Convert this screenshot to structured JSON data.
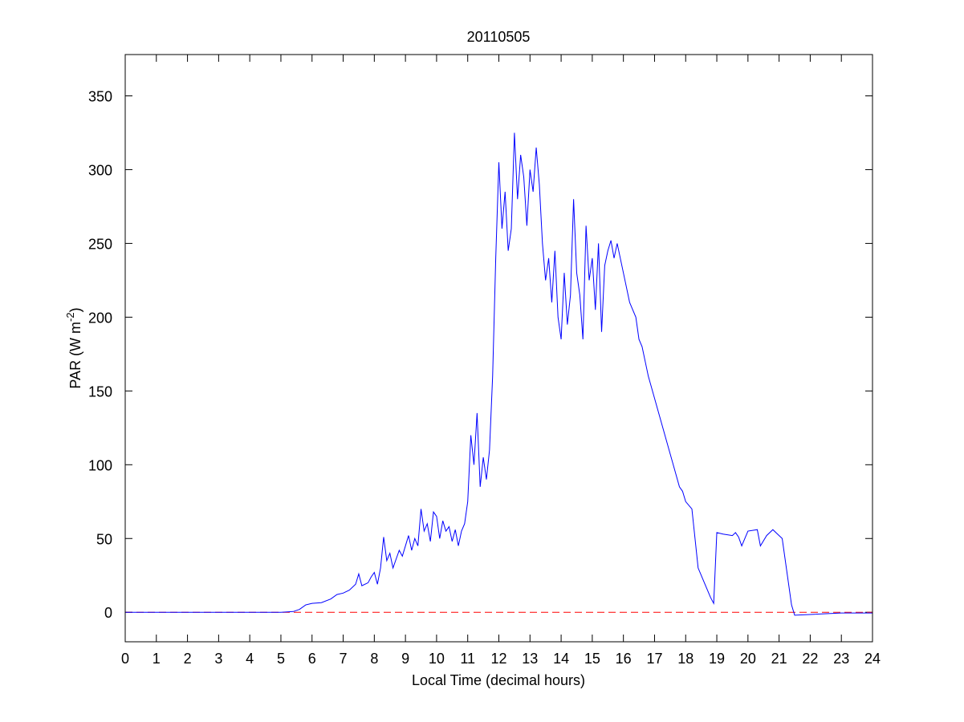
{
  "chart_data": {
    "type": "line",
    "title": "20110505",
    "xlabel": "Local Time (decimal hours)",
    "ylabel": {
      "text": "PAR (W m",
      "superscript": "-2",
      "suffix": ")"
    },
    "xlim": [
      0,
      24
    ],
    "xticks": [
      0,
      1,
      2,
      3,
      4,
      5,
      6,
      7,
      8,
      9,
      10,
      11,
      12,
      13,
      14,
      15,
      16,
      17,
      18,
      19,
      20,
      21,
      22,
      23,
      24
    ],
    "ylim": [
      -20,
      378
    ],
    "yticks": [
      0,
      50,
      100,
      150,
      200,
      250,
      300,
      350
    ],
    "grid": false,
    "reference_line": {
      "value": 0,
      "color": "#ff0000",
      "style": "dashed"
    },
    "series": [
      {
        "color": "#0000ff",
        "x": [
          0,
          5,
          5.4,
          5.6,
          5.8,
          6,
          6.3,
          6.6,
          6.8,
          7,
          7.2,
          7.4,
          7.5,
          7.6,
          7.8,
          7.9,
          8,
          8.1,
          8.2,
          8.3,
          8.4,
          8.5,
          8.6,
          8.7,
          8.8,
          8.9,
          9,
          9.1,
          9.2,
          9.3,
          9.4,
          9.5,
          9.6,
          9.7,
          9.8,
          9.9,
          10,
          10.1,
          10.2,
          10.3,
          10.4,
          10.5,
          10.6,
          10.7,
          10.8,
          10.9,
          11,
          11.1,
          11.2,
          11.3,
          11.4,
          11.5,
          11.6,
          11.7,
          11.8,
          11.9,
          12,
          12.1,
          12.2,
          12.3,
          12.4,
          12.5,
          12.6,
          12.7,
          12.8,
          12.9,
          13,
          13.1,
          13.2,
          13.3,
          13.4,
          13.5,
          13.6,
          13.7,
          13.8,
          13.9,
          14,
          14.1,
          14.2,
          14.3,
          14.4,
          14.5,
          14.6,
          14.7,
          14.8,
          14.9,
          15,
          15.1,
          15.2,
          15.3,
          15.4,
          15.5,
          15.6,
          15.7,
          15.8,
          15.9,
          16,
          16.2,
          16.4,
          16.5,
          16.6,
          16.8,
          17,
          17.2,
          17.4,
          17.6,
          17.8,
          17.9,
          18,
          18.2,
          18.4,
          18.6,
          18.8,
          18.9,
          19,
          19.2,
          19.5,
          19.6,
          19.7,
          19.8,
          20,
          20.3,
          20.4,
          20.6,
          20.8,
          21,
          21.1,
          21.3,
          21.4,
          21.5,
          22,
          23,
          24
        ],
        "values": [
          0,
          0,
          0.5,
          2,
          5,
          6,
          6.5,
          9,
          12,
          13,
          15,
          19,
          26,
          18,
          20,
          24,
          27,
          19,
          30,
          51,
          35,
          40,
          30,
          36,
          42,
          38,
          45,
          52,
          42,
          50,
          45,
          70,
          55,
          60,
          48,
          68,
          65,
          50,
          62,
          55,
          58,
          48,
          56,
          45,
          55,
          60,
          75,
          120,
          100,
          135,
          85,
          105,
          90,
          110,
          160,
          240,
          305,
          260,
          285,
          245,
          260,
          325,
          280,
          310,
          295,
          262,
          300,
          285,
          315,
          290,
          250,
          225,
          240,
          210,
          245,
          200,
          185,
          230,
          195,
          215,
          280,
          230,
          215,
          185,
          262,
          225,
          240,
          205,
          250,
          190,
          235,
          245,
          252,
          240,
          250,
          240,
          230,
          210,
          200,
          185,
          180,
          160,
          145,
          130,
          115,
          100,
          85,
          82,
          75,
          70,
          30,
          20,
          10,
          6,
          54,
          53,
          52,
          54,
          51,
          45,
          55,
          56,
          45,
          52,
          56,
          52,
          50,
          20,
          5,
          -2,
          -1.5,
          -0.5,
          -0.5
        ]
      }
    ]
  }
}
